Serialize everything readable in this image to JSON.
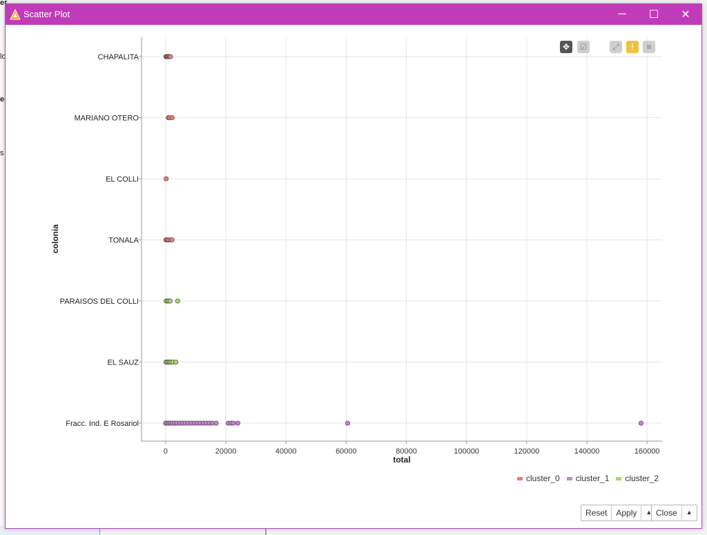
{
  "window": {
    "title": "Scatter Plot",
    "controls": {
      "minimize": "─",
      "maximize": "☐",
      "close": "✕"
    }
  },
  "toolbar": [
    {
      "name": "pan-icon",
      "glyph": "✥"
    },
    {
      "name": "select-icon",
      "glyph": "☑"
    },
    {
      "name": "fit-icon",
      "glyph": "⤢"
    },
    {
      "name": "warning-icon",
      "glyph": "!"
    },
    {
      "name": "menu-icon",
      "glyph": "≡"
    }
  ],
  "buttons": {
    "reset": "Reset",
    "apply": "Apply",
    "close": "Close",
    "arrow": "▲"
  },
  "colors": {
    "titlebar": "#c03bb7",
    "cluster_0": "#f07c72",
    "cluster_1": "#c285cc",
    "cluster_2": "#a9d96b"
  },
  "chart_data": {
    "type": "scatter",
    "xlabel": "total",
    "ylabel": "colonia",
    "xlim": [
      -8000,
      165000
    ],
    "xticks": [
      0,
      20000,
      40000,
      60000,
      80000,
      100000,
      120000,
      140000,
      160000
    ],
    "categories": [
      "CHAPALITA",
      "MARIANO OTERO",
      "EL COLLI",
      "TONALA",
      "PARAISOS DEL COLLI",
      "EL SAUZ",
      "Fracc. Ind. E Rosariol"
    ],
    "grid": true,
    "legend_position": "bottom-right",
    "series": [
      {
        "name": "cluster_0",
        "color": "#f07c72",
        "points": [
          {
            "x": 100,
            "y": "CHAPALITA"
          },
          {
            "x": 400,
            "y": "CHAPALITA"
          },
          {
            "x": 700,
            "y": "CHAPALITA"
          },
          {
            "x": 1000,
            "y": "CHAPALITA"
          },
          {
            "x": 1300,
            "y": "CHAPALITA"
          },
          {
            "x": 1600,
            "y": "CHAPALITA"
          },
          {
            "x": 900,
            "y": "MARIANO OTERO"
          },
          {
            "x": 1300,
            "y": "MARIANO OTERO"
          },
          {
            "x": 2200,
            "y": "MARIANO OTERO"
          },
          {
            "x": 200,
            "y": "EL COLLI"
          },
          {
            "x": 100,
            "y": "TONALA"
          },
          {
            "x": 500,
            "y": "TONALA"
          },
          {
            "x": 900,
            "y": "TONALA"
          },
          {
            "x": 1500,
            "y": "TONALA"
          },
          {
            "x": 2100,
            "y": "TONALA"
          }
        ]
      },
      {
        "name": "cluster_1",
        "color": "#c285cc",
        "points": [
          {
            "x": 0,
            "y": "Fracc. Ind. E Rosariol"
          },
          {
            "x": 500,
            "y": "Fracc. Ind. E Rosariol"
          },
          {
            "x": 1000,
            "y": "Fracc. Ind. E Rosariol"
          },
          {
            "x": 1600,
            "y": "Fracc. Ind. E Rosariol"
          },
          {
            "x": 2200,
            "y": "Fracc. Ind. E Rosariol"
          },
          {
            "x": 3000,
            "y": "Fracc. Ind. E Rosariol"
          },
          {
            "x": 3800,
            "y": "Fracc. Ind. E Rosariol"
          },
          {
            "x": 4700,
            "y": "Fracc. Ind. E Rosariol"
          },
          {
            "x": 5600,
            "y": "Fracc. Ind. E Rosariol"
          },
          {
            "x": 6500,
            "y": "Fracc. Ind. E Rosariol"
          },
          {
            "x": 7500,
            "y": "Fracc. Ind. E Rosariol"
          },
          {
            "x": 8500,
            "y": "Fracc. Ind. E Rosariol"
          },
          {
            "x": 9500,
            "y": "Fracc. Ind. E Rosariol"
          },
          {
            "x": 10500,
            "y": "Fracc. Ind. E Rosariol"
          },
          {
            "x": 11500,
            "y": "Fracc. Ind. E Rosariol"
          },
          {
            "x": 12500,
            "y": "Fracc. Ind. E Rosariol"
          },
          {
            "x": 13500,
            "y": "Fracc. Ind. E Rosariol"
          },
          {
            "x": 14500,
            "y": "Fracc. Ind. E Rosariol"
          },
          {
            "x": 15500,
            "y": "Fracc. Ind. E Rosariol"
          },
          {
            "x": 16800,
            "y": "Fracc. Ind. E Rosariol"
          },
          {
            "x": 20800,
            "y": "Fracc. Ind. E Rosariol"
          },
          {
            "x": 21700,
            "y": "Fracc. Ind. E Rosariol"
          },
          {
            "x": 22500,
            "y": "Fracc. Ind. E Rosariol"
          },
          {
            "x": 24000,
            "y": "Fracc. Ind. E Rosariol"
          },
          {
            "x": 60500,
            "y": "Fracc. Ind. E Rosariol"
          },
          {
            "x": 158000,
            "y": "Fracc. Ind. E Rosariol"
          }
        ]
      },
      {
        "name": "cluster_2",
        "color": "#a9d96b",
        "points": [
          {
            "x": 200,
            "y": "PARAISOS DEL COLLI"
          },
          {
            "x": 600,
            "y": "PARAISOS DEL COLLI"
          },
          {
            "x": 1000,
            "y": "PARAISOS DEL COLLI"
          },
          {
            "x": 1500,
            "y": "PARAISOS DEL COLLI"
          },
          {
            "x": 4000,
            "y": "PARAISOS DEL COLLI"
          },
          {
            "x": 100,
            "y": "EL SAUZ"
          },
          {
            "x": 500,
            "y": "EL SAUZ"
          },
          {
            "x": 900,
            "y": "EL SAUZ"
          },
          {
            "x": 1300,
            "y": "EL SAUZ"
          },
          {
            "x": 1800,
            "y": "EL SAUZ"
          },
          {
            "x": 2400,
            "y": "EL SAUZ"
          },
          {
            "x": 3400,
            "y": "EL SAUZ"
          }
        ]
      }
    ]
  }
}
